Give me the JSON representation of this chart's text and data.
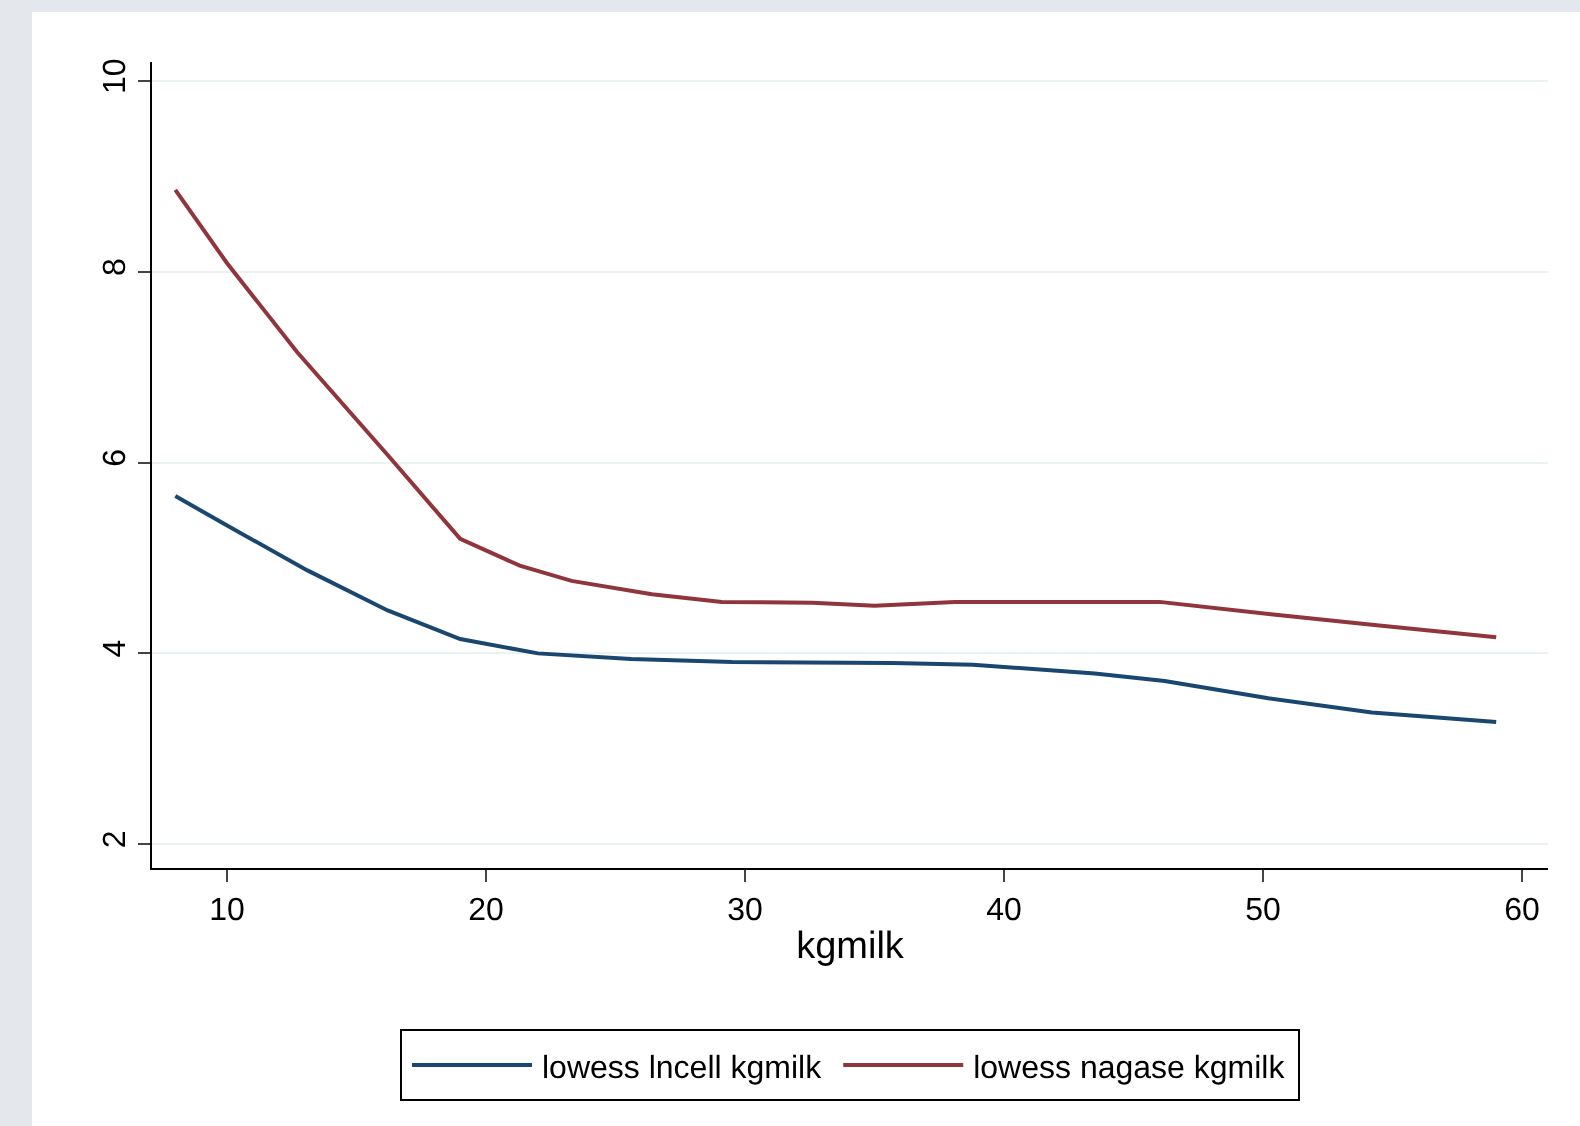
{
  "chart_data": {
    "type": "line",
    "xlabel": "kgmilk",
    "xlim": [
      7.1,
      61
    ],
    "xticks": [
      10,
      20,
      30,
      40,
      50,
      60
    ],
    "ylim": [
      1.75,
      10.2
    ],
    "yticks": [
      2,
      4,
      6,
      8,
      10
    ],
    "grid": "y",
    "legend": "bottom",
    "line_style": "solid",
    "marker": "none",
    "series": [
      {
        "name": "lowess lncell kgmilk",
        "color": "#1a476f",
        "x": [
          8,
          10,
          13.1,
          16.2,
          19,
          22,
          25.6,
          29.5,
          35.7,
          38.8,
          43.5,
          46.2,
          50.2,
          54.2,
          59
        ],
        "values": [
          5.65,
          5.34,
          4.87,
          4.45,
          4.15,
          4.0,
          3.94,
          3.91,
          3.9,
          3.88,
          3.79,
          3.71,
          3.53,
          3.38,
          3.28
        ]
      },
      {
        "name": "lowess nagase kgmilk",
        "color": "#90353b",
        "x": [
          8,
          10,
          12.7,
          16.2,
          19,
          21.3,
          23.3,
          26.4,
          29.1,
          32.6,
          35,
          38.1,
          46,
          50.3,
          54.2,
          59
        ],
        "values": [
          8.86,
          8.09,
          7.16,
          6.08,
          5.2,
          4.92,
          4.76,
          4.62,
          4.54,
          4.53,
          4.5,
          4.54,
          4.54,
          4.41,
          4.3,
          4.17
        ]
      }
    ]
  }
}
